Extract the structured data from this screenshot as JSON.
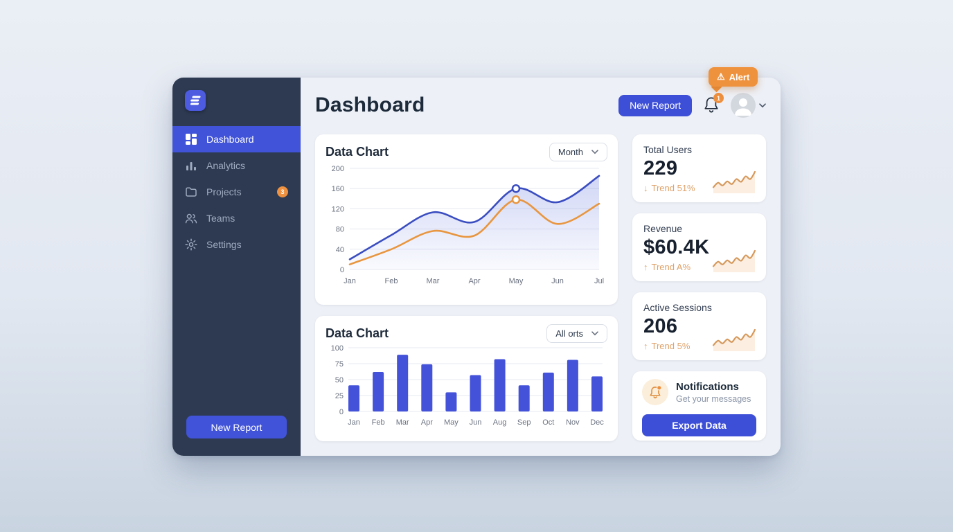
{
  "sidebar": {
    "items": [
      {
        "label": "Dashboard",
        "icon": "grid-icon",
        "active": true
      },
      {
        "label": "Analytics",
        "icon": "bar-chart-icon",
        "active": false
      },
      {
        "label": "Projects",
        "icon": "folder-icon",
        "active": false,
        "badge": "3"
      },
      {
        "label": "Teams",
        "icon": "users-icon",
        "active": false
      },
      {
        "label": "Settings",
        "icon": "gear-icon",
        "active": false
      }
    ],
    "new_report_label": "New Report"
  },
  "header": {
    "title": "Dashboard",
    "new_report_label": "New Report",
    "notifications_count": "1",
    "alert": {
      "label": "Alert",
      "icon": "warning-icon"
    }
  },
  "charts": [
    {
      "title": "Data Chart",
      "filter": {
        "value": "Month"
      }
    },
    {
      "title": "Data Chart",
      "filter": {
        "value": "All orts"
      }
    }
  ],
  "chart_data": [
    {
      "type": "line",
      "title": "Data Chart",
      "x": [
        "Jan",
        "Feb",
        "Mar",
        "Apr",
        "May",
        "Jun",
        "Jul"
      ],
      "series": [
        {
          "name": "primary",
          "color": "#3a4dc0",
          "values": [
            20,
            68,
            113,
            94,
            160,
            133,
            185
          ],
          "marker_index": 4,
          "area": true
        },
        {
          "name": "secondary",
          "color": "#e8963f",
          "values": [
            10,
            40,
            76,
            67,
            138,
            90,
            130
          ],
          "marker_index": 4,
          "area": false
        }
      ],
      "ylim": [
        0,
        200
      ],
      "yticks": [
        0,
        40,
        80,
        120,
        160,
        200
      ],
      "grid": true,
      "legend": "none"
    },
    {
      "type": "bar",
      "title": "Data Chart",
      "categories": [
        "Jan",
        "Feb",
        "Mar",
        "Apr",
        "May",
        "Jun",
        "Aug",
        "Sep",
        "Oct",
        "Nov",
        "Dec"
      ],
      "values": [
        41,
        62,
        89,
        74,
        30,
        57,
        82,
        41,
        61,
        81,
        55
      ],
      "bar_color": "#4452da",
      "ylim": [
        0,
        100
      ],
      "yticks": [
        0,
        25,
        50,
        75,
        100
      ],
      "grid": true,
      "legend": "none"
    }
  ],
  "stats": {
    "cards": [
      {
        "title": "Total Users",
        "value": "229",
        "arrow": "↓",
        "trend": "Trend 51%",
        "sparkline": [
          10,
          20,
          14,
          23,
          17,
          28,
          22,
          34,
          28,
          44
        ]
      },
      {
        "title": "Revenue",
        "value": "$60.4K",
        "arrow": "↑",
        "trend": "Trend A%",
        "sparkline": [
          10,
          20,
          14,
          23,
          17,
          28,
          22,
          34,
          28,
          44
        ]
      },
      {
        "title": "Active Sessions",
        "value": "206",
        "arrow": "↑",
        "trend": "Trend 5%",
        "sparkline": [
          10,
          20,
          14,
          23,
          17,
          28,
          22,
          34,
          28,
          44
        ]
      }
    ]
  },
  "notifications_card": {
    "title": "Notifications",
    "subtitle": "Get your messages",
    "button_label": "Export Data",
    "icon": "bell-alert-icon"
  },
  "colors": {
    "accent_blue": "#3e4fd7",
    "sidebar_bg": "#2d3a51",
    "alert_orange": "#ef923d",
    "trend_orange": "#dfa26a",
    "line_primary": "#3a4dc0",
    "line_secondary": "#e8963f",
    "bar_fill": "#4452da"
  }
}
